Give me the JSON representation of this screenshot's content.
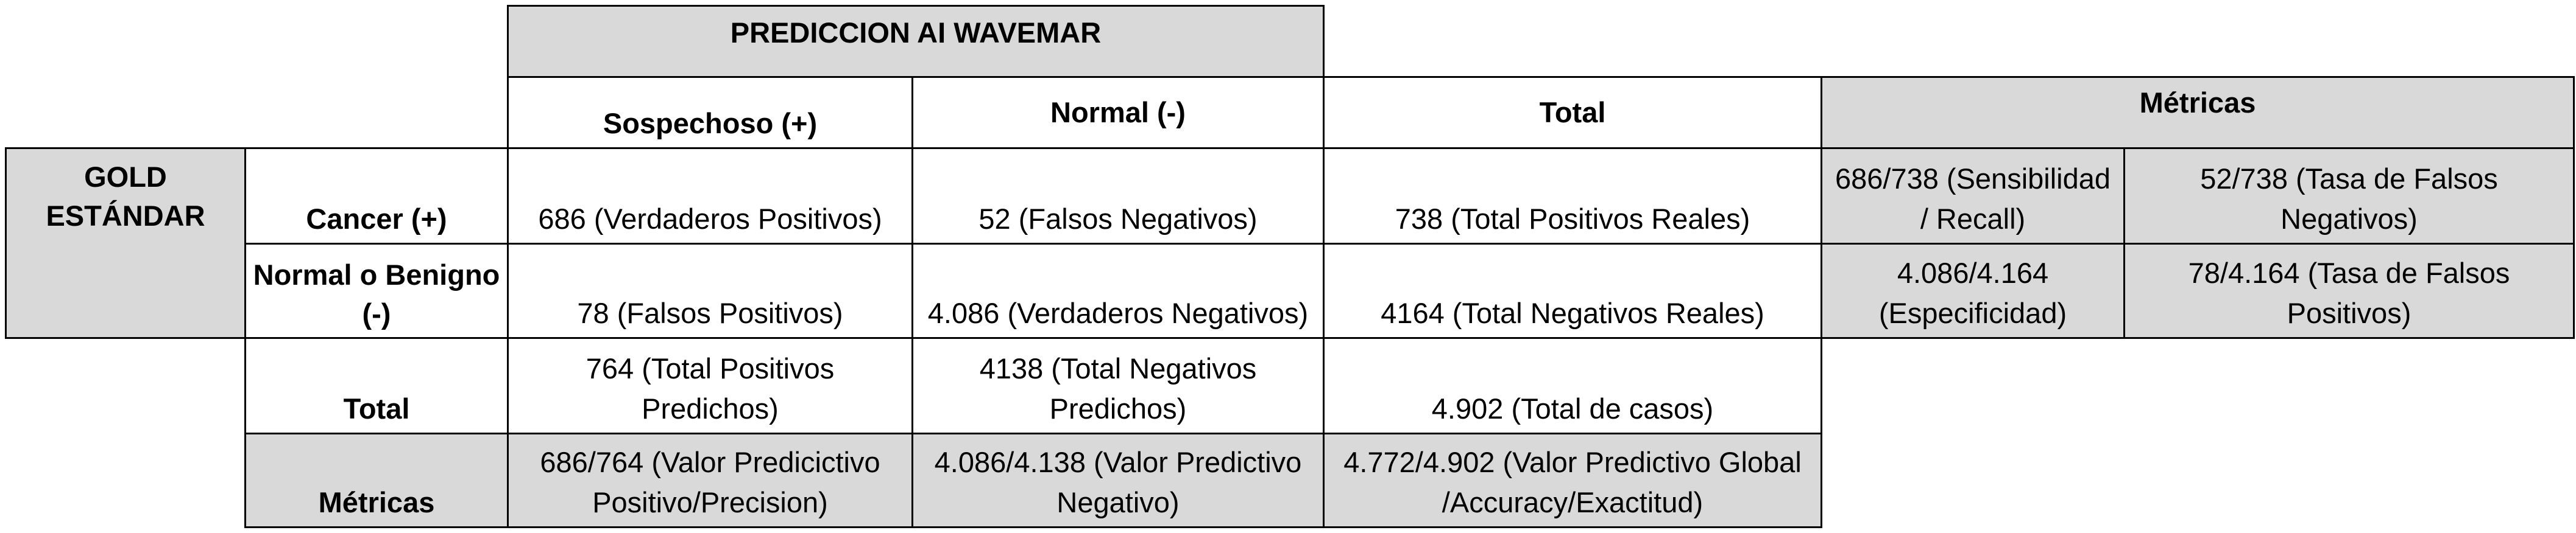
{
  "table": {
    "title": "PREDICCION AI WAVEMAR",
    "gold_label": "GOLD\nESTÁNDAR",
    "columns": {
      "suspicious": "Sospechoso (+)",
      "normal": "Normal (-)",
      "total": "Total",
      "metrics": "Métricas"
    },
    "rows": [
      {
        "label": "Cancer (+)",
        "suspicious": "686 (Verdaderos Positivos)",
        "normal": "52 (Falsos Negativos)",
        "total": "738 (Total Positivos Reales)",
        "metric_1": "686/738 (Sensibilidad\n/ Recall)",
        "metric_2": "52/738 (Tasa de Falsos\nNegativos)"
      },
      {
        "label": "Normal o Benigno\n(-)",
        "suspicious": "78 (Falsos Positivos)",
        "normal": "4.086 (Verdaderos Negativos)",
        "total": "4164 (Total Negativos Reales)",
        "metric_1": "4.086/4.164\n(Especificidad)",
        "metric_2": "78/4.164 (Tasa de Falsos\nPositivos)"
      }
    ],
    "total_row": {
      "label": "Total",
      "suspicious": "764 (Total Positivos\nPredichos)",
      "normal": "4138 (Total Negativos\nPredichos)",
      "total": "4.902 (Total de casos)"
    },
    "metrics_row": {
      "label": "Métricas",
      "suspicious": "686/764 (Valor Predicictivo\nPositivo/Precision)",
      "normal": "4.086/4.138 (Valor Predictivo\nNegativo)",
      "total": "4.772/4.902 (Valor Predictivo Global\n/Accuracy/Exactitud)"
    },
    "colors": {
      "header_fill": "#d9d9d9",
      "body_fill": "#ffffff",
      "border": "#000000"
    }
  }
}
